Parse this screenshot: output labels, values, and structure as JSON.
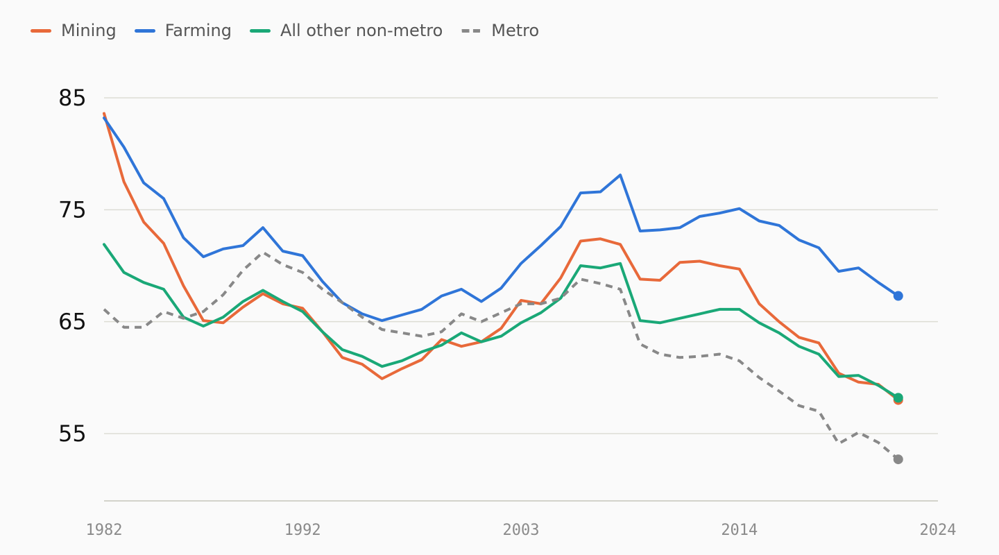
{
  "chart_data": {
    "type": "line",
    "title": "",
    "xlabel": "",
    "ylabel": "",
    "xlim": [
      1982,
      2024
    ],
    "ylim": [
      49,
      85
    ],
    "yticks": [
      55,
      65,
      75,
      85
    ],
    "xticks": [
      1982,
      1992,
      2003,
      2014,
      2024
    ],
    "grid": true,
    "legend_position": "top-left",
    "x": [
      1982,
      1983,
      1984,
      1985,
      1986,
      1987,
      1988,
      1989,
      1990,
      1991,
      1992,
      1993,
      1994,
      1995,
      1996,
      1997,
      1998,
      1999,
      2000,
      2001,
      2002,
      2003,
      2004,
      2005,
      2006,
      2007,
      2008,
      2009,
      2010,
      2011,
      2012,
      2013,
      2014,
      2015,
      2016,
      2017,
      2018,
      2019,
      2020,
      2021,
      2022,
      2023,
      2024,
      2025
    ],
    "series": [
      {
        "name": "Mining",
        "color": "#e8693a",
        "dashed": false,
        "values": [
          83.6,
          77.5,
          73.9,
          72.0,
          68.2,
          65.1,
          64.9,
          66.3,
          67.5,
          66.6,
          66.2,
          64.1,
          61.8,
          61.2,
          59.9,
          60.8,
          61.6,
          63.4,
          62.8,
          63.2,
          64.4,
          66.9,
          66.6,
          68.9,
          72.2,
          72.4,
          71.9,
          68.8,
          68.7,
          70.3,
          70.4,
          70.0,
          69.7,
          66.6,
          65.0,
          63.6,
          63.1,
          60.4,
          59.6,
          59.4,
          58.0,
          null,
          null,
          null
        ]
      },
      {
        "name": "Farming",
        "color": "#2f75d8",
        "dashed": false,
        "values": [
          83.2,
          80.6,
          77.4,
          76.0,
          72.5,
          70.8,
          71.5,
          71.8,
          73.4,
          71.3,
          70.9,
          68.6,
          66.7,
          65.7,
          65.1,
          65.6,
          66.1,
          67.3,
          67.9,
          66.8,
          68.0,
          70.2,
          71.8,
          73.5,
          76.5,
          76.6,
          78.1,
          73.1,
          73.2,
          73.4,
          74.4,
          74.7,
          75.1,
          74.0,
          73.6,
          72.3,
          71.6,
          69.5,
          69.8,
          68.5,
          67.3,
          null,
          null,
          null
        ]
      },
      {
        "name": "All other non-metro",
        "color": "#1aa877",
        "dashed": false,
        "values": [
          71.9,
          69.4,
          68.5,
          67.9,
          65.4,
          64.6,
          65.4,
          66.8,
          67.8,
          66.8,
          65.9,
          64.1,
          62.5,
          61.9,
          61.0,
          61.5,
          62.3,
          62.9,
          64.0,
          63.2,
          63.7,
          64.9,
          65.8,
          67.1,
          70.0,
          69.8,
          70.2,
          65.1,
          64.9,
          65.3,
          65.7,
          66.1,
          66.1,
          64.9,
          64.0,
          62.8,
          62.1,
          60.1,
          60.2,
          59.3,
          58.2,
          null,
          null,
          null
        ]
      },
      {
        "name": "Metro",
        "color": "#888888",
        "dashed": true,
        "values": [
          66.1,
          64.5,
          64.5,
          65.9,
          65.3,
          65.9,
          67.4,
          69.6,
          71.2,
          70.1,
          69.4,
          67.9,
          66.7,
          65.4,
          64.3,
          64.0,
          63.7,
          64.1,
          65.7,
          65.0,
          65.8,
          66.6,
          66.6,
          67.1,
          68.8,
          68.4,
          67.9,
          63.0,
          62.1,
          61.8,
          61.9,
          62.1,
          61.5,
          60.0,
          58.8,
          57.5,
          57.0,
          54.1,
          55.1,
          54.2,
          52.7,
          null,
          null,
          null
        ]
      }
    ]
  }
}
